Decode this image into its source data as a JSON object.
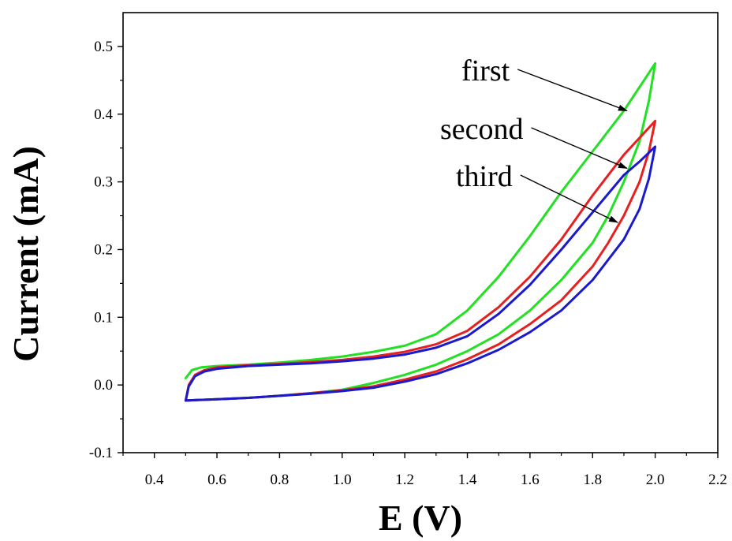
{
  "chart_data": {
    "type": "line",
    "title": "",
    "xlabel": "E (V)",
    "ylabel": "Current (mA)",
    "xlim": [
      0.3,
      2.2
    ],
    "ylim": [
      -0.1,
      0.55
    ],
    "x_ticks": [
      0.4,
      0.6,
      0.8,
      1.0,
      1.2,
      1.4,
      1.6,
      1.8,
      2.0,
      2.2
    ],
    "x_tick_labels": [
      "0.4",
      "0.6",
      "0.8",
      "1.0",
      "1.2",
      "1.4",
      "1.6",
      "1.8",
      "2.0",
      "2.2"
    ],
    "y_ticks": [
      -0.1,
      0.0,
      0.1,
      0.2,
      0.3,
      0.4,
      0.5
    ],
    "y_tick_labels": [
      "-0.1",
      "0.0",
      "0.1",
      "0.2",
      "0.3",
      "0.4",
      "0.5"
    ],
    "grid": false,
    "series": [
      {
        "name": "first",
        "color": "#22e022",
        "points": [
          [
            0.5,
            0.01
          ],
          [
            0.52,
            0.022
          ],
          [
            0.55,
            0.026
          ],
          [
            0.6,
            0.028
          ],
          [
            0.7,
            0.03
          ],
          [
            0.8,
            0.033
          ],
          [
            0.9,
            0.037
          ],
          [
            1.0,
            0.042
          ],
          [
            1.1,
            0.049
          ],
          [
            1.2,
            0.058
          ],
          [
            1.3,
            0.075
          ],
          [
            1.4,
            0.11
          ],
          [
            1.5,
            0.16
          ],
          [
            1.6,
            0.22
          ],
          [
            1.7,
            0.285
          ],
          [
            1.8,
            0.345
          ],
          [
            1.9,
            0.405
          ],
          [
            1.95,
            0.44
          ],
          [
            2.0,
            0.475
          ],
          [
            1.98,
            0.42
          ],
          [
            1.95,
            0.36
          ],
          [
            1.9,
            0.3
          ],
          [
            1.85,
            0.25
          ],
          [
            1.8,
            0.21
          ],
          [
            1.7,
            0.155
          ],
          [
            1.6,
            0.11
          ],
          [
            1.5,
            0.075
          ],
          [
            1.4,
            0.05
          ],
          [
            1.3,
            0.03
          ],
          [
            1.2,
            0.015
          ],
          [
            1.1,
            0.003
          ],
          [
            1.0,
            -0.007
          ],
          [
            0.9,
            -0.012
          ],
          [
            0.8,
            -0.016
          ],
          [
            0.7,
            -0.019
          ],
          [
            0.6,
            -0.021
          ],
          [
            0.5,
            -0.023
          ]
        ]
      },
      {
        "name": "second",
        "color": "#e62020",
        "points": [
          [
            0.5,
            -0.023
          ],
          [
            0.51,
            0.0
          ],
          [
            0.53,
            0.015
          ],
          [
            0.56,
            0.022
          ],
          [
            0.6,
            0.026
          ],
          [
            0.7,
            0.029
          ],
          [
            0.8,
            0.031
          ],
          [
            0.9,
            0.034
          ],
          [
            1.0,
            0.037
          ],
          [
            1.1,
            0.042
          ],
          [
            1.2,
            0.049
          ],
          [
            1.3,
            0.06
          ],
          [
            1.4,
            0.08
          ],
          [
            1.5,
            0.115
          ],
          [
            1.6,
            0.16
          ],
          [
            1.7,
            0.215
          ],
          [
            1.8,
            0.28
          ],
          [
            1.9,
            0.34
          ],
          [
            1.95,
            0.365
          ],
          [
            2.0,
            0.39
          ],
          [
            1.98,
            0.345
          ],
          [
            1.95,
            0.3
          ],
          [
            1.9,
            0.25
          ],
          [
            1.85,
            0.21
          ],
          [
            1.8,
            0.175
          ],
          [
            1.7,
            0.125
          ],
          [
            1.6,
            0.09
          ],
          [
            1.5,
            0.06
          ],
          [
            1.4,
            0.038
          ],
          [
            1.3,
            0.02
          ],
          [
            1.2,
            0.008
          ],
          [
            1.1,
            -0.002
          ],
          [
            1.0,
            -0.008
          ],
          [
            0.9,
            -0.012
          ],
          [
            0.8,
            -0.016
          ],
          [
            0.7,
            -0.019
          ],
          [
            0.6,
            -0.021
          ],
          [
            0.5,
            -0.023
          ]
        ]
      },
      {
        "name": "third",
        "color": "#1a1acc",
        "points": [
          [
            0.5,
            -0.023
          ],
          [
            0.51,
            -0.002
          ],
          [
            0.53,
            0.013
          ],
          [
            0.56,
            0.02
          ],
          [
            0.6,
            0.024
          ],
          [
            0.7,
            0.028
          ],
          [
            0.8,
            0.03
          ],
          [
            0.9,
            0.032
          ],
          [
            1.0,
            0.035
          ],
          [
            1.1,
            0.039
          ],
          [
            1.2,
            0.045
          ],
          [
            1.3,
            0.055
          ],
          [
            1.4,
            0.072
          ],
          [
            1.5,
            0.105
          ],
          [
            1.6,
            0.148
          ],
          [
            1.7,
            0.2
          ],
          [
            1.8,
            0.255
          ],
          [
            1.9,
            0.31
          ],
          [
            1.95,
            0.33
          ],
          [
            2.0,
            0.352
          ],
          [
            1.98,
            0.305
          ],
          [
            1.95,
            0.26
          ],
          [
            1.9,
            0.215
          ],
          [
            1.85,
            0.185
          ],
          [
            1.8,
            0.155
          ],
          [
            1.7,
            0.11
          ],
          [
            1.6,
            0.078
          ],
          [
            1.5,
            0.052
          ],
          [
            1.4,
            0.032
          ],
          [
            1.3,
            0.016
          ],
          [
            1.2,
            0.005
          ],
          [
            1.1,
            -0.004
          ],
          [
            1.0,
            -0.009
          ],
          [
            0.9,
            -0.013
          ],
          [
            0.8,
            -0.016
          ],
          [
            0.7,
            -0.019
          ],
          [
            0.6,
            -0.021
          ],
          [
            0.5,
            -0.023
          ]
        ]
      }
    ],
    "annotations": [
      {
        "text": "first",
        "arrow_to": [
          1.91,
          0.405
        ]
      },
      {
        "text": "second",
        "arrow_to": [
          1.91,
          0.32
        ]
      },
      {
        "text": "third",
        "arrow_to": [
          1.88,
          0.24
        ]
      }
    ]
  }
}
